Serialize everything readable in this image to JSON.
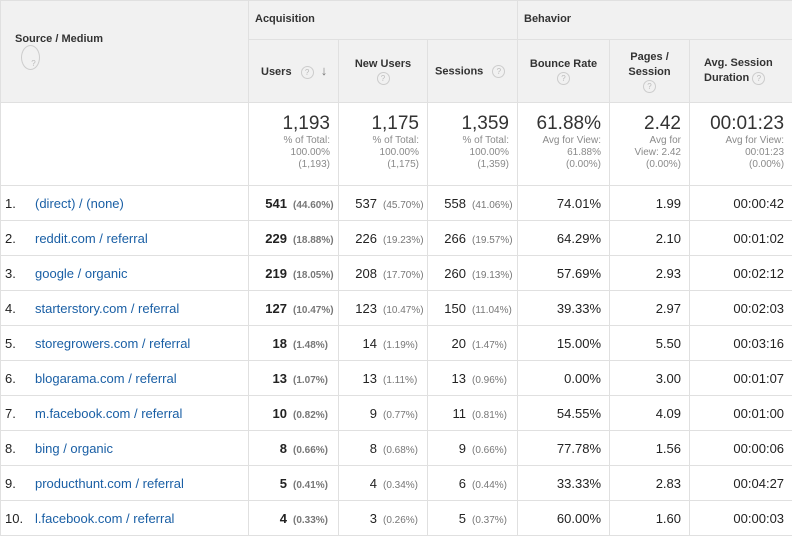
{
  "header": {
    "source_medium_label": "Source / Medium",
    "acquisition_label": "Acquisition",
    "behavior_label": "Behavior",
    "columns": {
      "users": "Users",
      "new_users": "New Users",
      "sessions": "Sessions",
      "bounce_rate": "Bounce Rate",
      "pages_session": "Pages / Session",
      "avg_session_duration": "Avg. Session Duration"
    },
    "help_glyph": "?",
    "sort_glyph": "↓"
  },
  "totals": {
    "users": {
      "value": "1,193",
      "l1": "% of Total:",
      "l2": "100.00%",
      "l3": "(1,193)"
    },
    "new_users": {
      "value": "1,175",
      "l1": "% of Total:",
      "l2": "100.00%",
      "l3": "(1,175)"
    },
    "sessions": {
      "value": "1,359",
      "l1": "% of Total:",
      "l2": "100.00%",
      "l3": "(1,359)"
    },
    "bounce_rate": {
      "value": "61.88%",
      "l1": "Avg for View:",
      "l2": "61.88%",
      "l3": "(0.00%)"
    },
    "pages_session": {
      "value": "2.42",
      "l1": "Avg for",
      "l2": "View: 2.42",
      "l3": "(0.00%)"
    },
    "avg_session_duration": {
      "value": "00:01:23",
      "l1": "Avg for View:",
      "l2": "00:01:23",
      "l3": "(0.00%)"
    }
  },
  "rows": [
    {
      "index": "1.",
      "source": "(direct) / (none)",
      "users": "541",
      "users_pct": "(44.60%)",
      "new_users": "537",
      "new_users_pct": "(45.70%)",
      "sessions": "558",
      "sessions_pct": "(41.06%)",
      "bounce_rate": "74.01%",
      "pages_session": "1.99",
      "duration": "00:00:42"
    },
    {
      "index": "2.",
      "source": "reddit.com / referral",
      "users": "229",
      "users_pct": "(18.88%)",
      "new_users": "226",
      "new_users_pct": "(19.23%)",
      "sessions": "266",
      "sessions_pct": "(19.57%)",
      "bounce_rate": "64.29%",
      "pages_session": "2.10",
      "duration": "00:01:02"
    },
    {
      "index": "3.",
      "source": "google / organic",
      "users": "219",
      "users_pct": "(18.05%)",
      "new_users": "208",
      "new_users_pct": "(17.70%)",
      "sessions": "260",
      "sessions_pct": "(19.13%)",
      "bounce_rate": "57.69%",
      "pages_session": "2.93",
      "duration": "00:02:12"
    },
    {
      "index": "4.",
      "source": "starterstory.com / referral",
      "users": "127",
      "users_pct": "(10.47%)",
      "new_users": "123",
      "new_users_pct": "(10.47%)",
      "sessions": "150",
      "sessions_pct": "(11.04%)",
      "bounce_rate": "39.33%",
      "pages_session": "2.97",
      "duration": "00:02:03"
    },
    {
      "index": "5.",
      "source": "storegrowers.com / referral",
      "users": "18",
      "users_pct": "(1.48%)",
      "new_users": "14",
      "new_users_pct": "(1.19%)",
      "sessions": "20",
      "sessions_pct": "(1.47%)",
      "bounce_rate": "15.00%",
      "pages_session": "5.50",
      "duration": "00:03:16"
    },
    {
      "index": "6.",
      "source": "blogarama.com / referral",
      "users": "13",
      "users_pct": "(1.07%)",
      "new_users": "13",
      "new_users_pct": "(1.11%)",
      "sessions": "13",
      "sessions_pct": "(0.96%)",
      "bounce_rate": "0.00%",
      "pages_session": "3.00",
      "duration": "00:01:07"
    },
    {
      "index": "7.",
      "source": "m.facebook.com / referral",
      "users": "10",
      "users_pct": "(0.82%)",
      "new_users": "9",
      "new_users_pct": "(0.77%)",
      "sessions": "11",
      "sessions_pct": "(0.81%)",
      "bounce_rate": "54.55%",
      "pages_session": "4.09",
      "duration": "00:01:00"
    },
    {
      "index": "8.",
      "source": "bing / organic",
      "users": "8",
      "users_pct": "(0.66%)",
      "new_users": "8",
      "new_users_pct": "(0.68%)",
      "sessions": "9",
      "sessions_pct": "(0.66%)",
      "bounce_rate": "77.78%",
      "pages_session": "1.56",
      "duration": "00:00:06"
    },
    {
      "index": "9.",
      "source": "producthunt.com / referral",
      "users": "5",
      "users_pct": "(0.41%)",
      "new_users": "4",
      "new_users_pct": "(0.34%)",
      "sessions": "6",
      "sessions_pct": "(0.44%)",
      "bounce_rate": "33.33%",
      "pages_session": "2.83",
      "duration": "00:04:27"
    },
    {
      "index": "10.",
      "source": "l.facebook.com / referral",
      "users": "4",
      "users_pct": "(0.33%)",
      "new_users": "3",
      "new_users_pct": "(0.26%)",
      "sessions": "5",
      "sessions_pct": "(0.37%)",
      "bounce_rate": "60.00%",
      "pages_session": "1.60",
      "duration": "00:00:03"
    }
  ],
  "colors": {
    "link": "#1a5fa5",
    "header_bg": "#f1f1f1",
    "border": "#e0e0e0"
  }
}
